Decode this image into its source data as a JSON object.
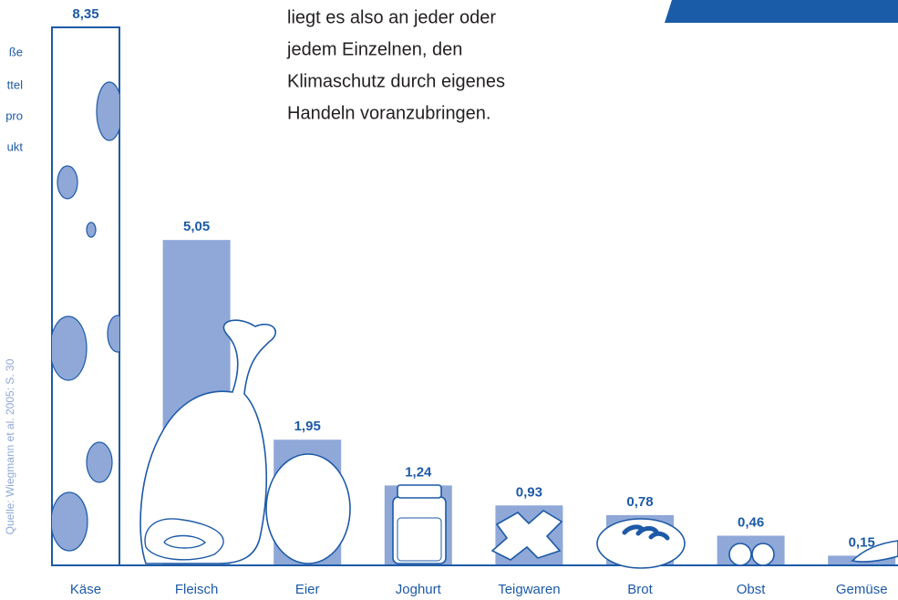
{
  "chart_data": {
    "type": "bar",
    "categories": [
      "Käse",
      "Fleisch",
      "Eier",
      "Joghurt",
      "Teigwaren",
      "Brot",
      "Obst",
      "Gemüse"
    ],
    "values": [
      8.35,
      5.05,
      1.95,
      1.24,
      0.93,
      0.78,
      0.46,
      0.15
    ],
    "value_labels": [
      "8,35",
      "5,05",
      "1,95",
      "1,24",
      "0,93",
      "0,78",
      "0,46",
      "0,15"
    ],
    "colors": [
      "#ffffff",
      "#8fa8d8",
      "#8fa8d8",
      "#8fa8d8",
      "#8fa8d8",
      "#8fa8d8",
      "#8fa8d8",
      "#8fa8d8"
    ]
  },
  "text_block": {
    "lines": [
      "liegt es also an jeder oder",
      "jedem Einzelnen, den",
      "Klimaschutz durch eigenes",
      "Handeln voranzubringen."
    ]
  },
  "side_label": {
    "lines": [
      "ße",
      "ttel",
      "pro",
      "ukt"
    ]
  },
  "source": "Quelle: Wiegmann et al. 2005: S. 30"
}
